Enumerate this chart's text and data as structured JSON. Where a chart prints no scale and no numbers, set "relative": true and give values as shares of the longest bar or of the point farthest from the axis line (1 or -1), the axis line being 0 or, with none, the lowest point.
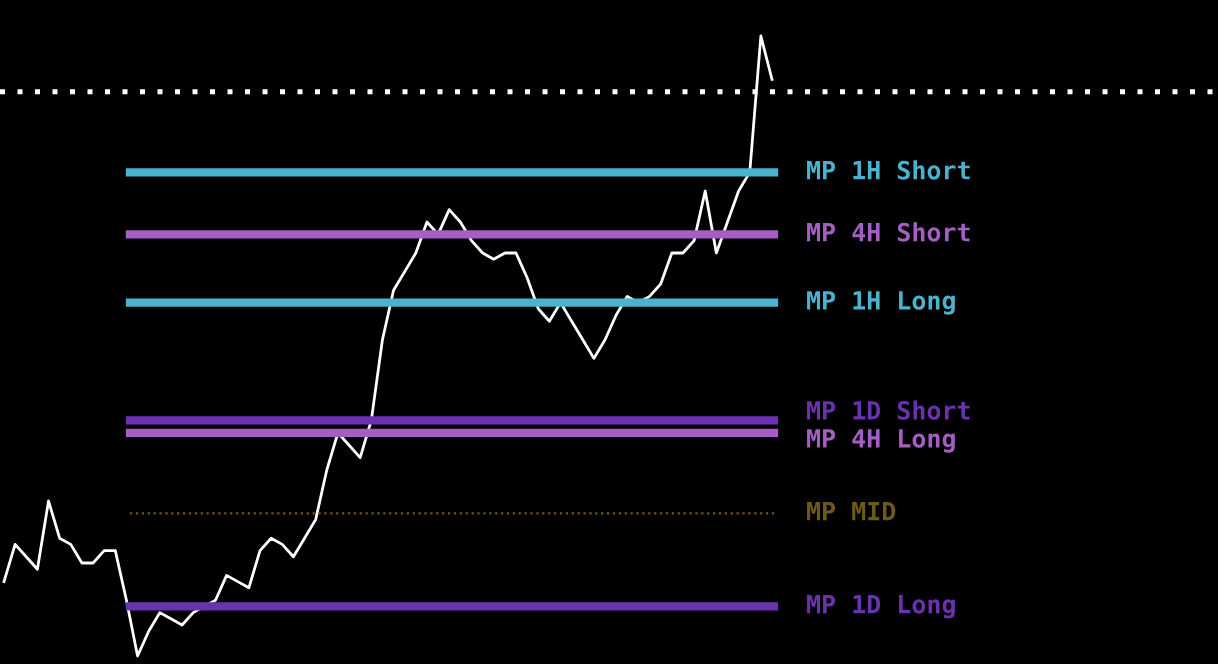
{
  "chart_data": {
    "type": "line",
    "relative": true,
    "color": "#ffffff",
    "tick_labels": false,
    "categories": [
      null,
      null,
      null,
      null,
      null,
      null,
      null,
      null,
      null,
      null,
      null,
      null,
      null,
      null,
      null,
      null,
      null,
      null,
      null,
      null,
      null,
      null,
      null,
      null,
      null,
      null,
      null,
      null,
      null,
      null,
      null,
      null,
      null,
      null,
      null,
      null,
      null,
      null,
      null,
      null,
      null,
      null,
      null,
      null,
      null,
      null,
      null,
      null,
      null,
      null,
      null,
      null,
      null,
      null,
      null,
      null,
      null,
      null,
      null,
      null,
      null,
      null,
      null,
      null,
      null,
      null,
      null,
      null,
      null,
      null
    ],
    "values": [
      0.12,
      0.18,
      0.16,
      0.14,
      0.25,
      0.19,
      0.18,
      0.15,
      0.15,
      0.17,
      0.17,
      0.09,
      0,
      0.04,
      0.07,
      0.06,
      0.05,
      0.07,
      0.08,
      0.09,
      0.13,
      0.12,
      0.11,
      0.17,
      0.19,
      0.18,
      0.16,
      0.19,
      0.22,
      0.3,
      0.36,
      0.34,
      0.32,
      0.38,
      0.51,
      0.59,
      0.62,
      0.65,
      0.7,
      0.68,
      0.72,
      0.7,
      0.67,
      0.65,
      0.64,
      0.65,
      0.65,
      0.61,
      0.56,
      0.54,
      0.57,
      0.54,
      0.51,
      0.48,
      0.51,
      0.55,
      0.58,
      0.57,
      0.58,
      0.6,
      0.65,
      0.65,
      0.67,
      0.75,
      0.65,
      0.7,
      0.75,
      0.78,
      1,
      0.93
    ],
    "ref_lines": [
      {
        "axis": "y",
        "value": 0.91,
        "color": "#ffffff",
        "line_style": "dotted"
      },
      {
        "axis": "y",
        "value": 0.78,
        "label": "MP 1H Short",
        "color": "#4ab4d0"
      },
      {
        "axis": "y",
        "value": 0.68,
        "label": "MP 4H Short",
        "color": "#a45ec4"
      },
      {
        "axis": "y",
        "value": 0.57,
        "label": "MP 1H Long",
        "color": "#4ab4d0"
      },
      {
        "axis": "y",
        "value": 0.38,
        "label": "MP 1D Short",
        "color": "#6a32b0"
      },
      {
        "axis": "y",
        "value": 0.36,
        "label": "MP 4H Long",
        "color": "#a45ec4"
      },
      {
        "axis": "y",
        "value": 0.23,
        "label": "MP MID",
        "color": "#6e5a14",
        "line_style": "dotted"
      },
      {
        "axis": "y",
        "value": 0.08,
        "label": "MP 1D Long",
        "color": "#6a32b0"
      }
    ]
  }
}
